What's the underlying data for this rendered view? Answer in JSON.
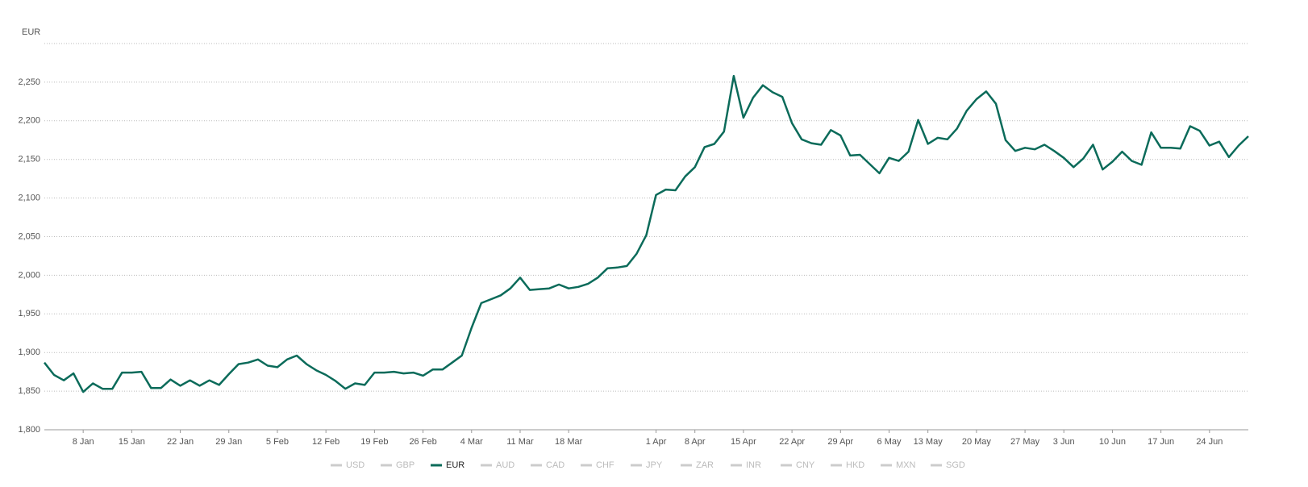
{
  "chart_data": {
    "type": "line",
    "y_label": "EUR",
    "categories": [
      null,
      null,
      null,
      null,
      "8 Jan",
      null,
      null,
      null,
      null,
      "15 Jan",
      null,
      null,
      null,
      null,
      "22 Jan",
      null,
      null,
      null,
      null,
      "29 Jan",
      null,
      null,
      null,
      null,
      "5 Feb",
      null,
      null,
      null,
      null,
      "12 Feb",
      null,
      null,
      null,
      null,
      "19 Feb",
      null,
      null,
      null,
      null,
      "26 Feb",
      null,
      null,
      null,
      null,
      "4 Mar",
      null,
      null,
      null,
      null,
      "11 Mar",
      null,
      null,
      null,
      null,
      "18 Mar",
      null,
      null,
      null,
      null,
      null,
      null,
      null,
      null,
      "1 Apr",
      null,
      null,
      null,
      "8 Apr",
      null,
      null,
      null,
      null,
      "15 Apr",
      null,
      null,
      null,
      null,
      "22 Apr",
      null,
      null,
      null,
      null,
      "29 Apr",
      null,
      null,
      null,
      null,
      "6 May",
      null,
      null,
      null,
      "13 May",
      null,
      null,
      null,
      null,
      "20 May",
      null,
      null,
      null,
      null,
      "27 May",
      null,
      null,
      null,
      "3 Jun",
      null,
      null,
      null,
      null,
      "10 Jun",
      null,
      null,
      null,
      null,
      "17 Jun",
      null,
      null,
      null,
      null,
      "24 Jun",
      null,
      null,
      null,
      null
    ],
    "series": [
      {
        "name": "USD",
        "visible": false
      },
      {
        "name": "GBP",
        "visible": false
      },
      {
        "name": "EUR",
        "visible": true,
        "color": "#0b6b5a",
        "values": [
          1887,
          1871,
          1864,
          1873,
          1849,
          1860,
          1853,
          1853,
          1874,
          1874,
          1875,
          1854,
          1854,
          1865,
          1857,
          1864,
          1857,
          1864,
          1858,
          1872,
          1885,
          1887,
          1891,
          1883,
          1881,
          1891,
          1896,
          1885,
          1877,
          1871,
          1863,
          1853,
          1860,
          1858,
          1874,
          1874,
          1875,
          1873,
          1874,
          1870,
          1878,
          1878,
          1887,
          1896,
          1932,
          1964,
          1969,
          1974,
          1983,
          1997,
          1981,
          1982,
          1983,
          1988,
          1983,
          1985,
          1989,
          1997,
          2009,
          2010,
          2012,
          2028,
          2052,
          2104,
          2111,
          2110,
          2128,
          2140,
          2166,
          2170,
          2186,
          2258,
          2204,
          2230,
          2246,
          2237,
          2231,
          2197,
          2176,
          2171,
          2169,
          2188,
          2181,
          2155,
          2156,
          2144,
          2132,
          2152,
          2148,
          2160,
          2201,
          2170,
          2178,
          2176,
          2190,
          2213,
          2228,
          2238,
          2222,
          2175,
          2161,
          2165,
          2163,
          2169,
          2161,
          2152,
          2140,
          2151,
          2169,
          2137,
          2147,
          2160,
          2148,
          2143,
          2185,
          2165,
          2165,
          2164,
          2193,
          2187,
          2168,
          2173,
          2153,
          2168,
          2180
        ]
      },
      {
        "name": "AUD",
        "visible": false
      },
      {
        "name": "CAD",
        "visible": false
      },
      {
        "name": "CHF",
        "visible": false
      },
      {
        "name": "JPY",
        "visible": false
      },
      {
        "name": "ZAR",
        "visible": false
      },
      {
        "name": "INR",
        "visible": false
      },
      {
        "name": "CNY",
        "visible": false
      },
      {
        "name": "HKD",
        "visible": false
      },
      {
        "name": "MXN",
        "visible": false
      },
      {
        "name": "SGD",
        "visible": false
      }
    ],
    "ylim": [
      1800,
      2300
    ],
    "yticks": [
      {
        "value": 1800,
        "label": "1,800"
      },
      {
        "value": 1850,
        "label": "1,850"
      },
      {
        "value": 1900,
        "label": "1,900"
      },
      {
        "value": 1950,
        "label": "1,950"
      },
      {
        "value": 2000,
        "label": "2,000"
      },
      {
        "value": 2050,
        "label": "2,050"
      },
      {
        "value": 2100,
        "label": "2,100"
      },
      {
        "value": 2150,
        "label": "2,150"
      },
      {
        "value": 2200,
        "label": "2,200"
      },
      {
        "value": 2250,
        "label": "2,250"
      }
    ],
    "grid": true,
    "legend": "bottom"
  }
}
